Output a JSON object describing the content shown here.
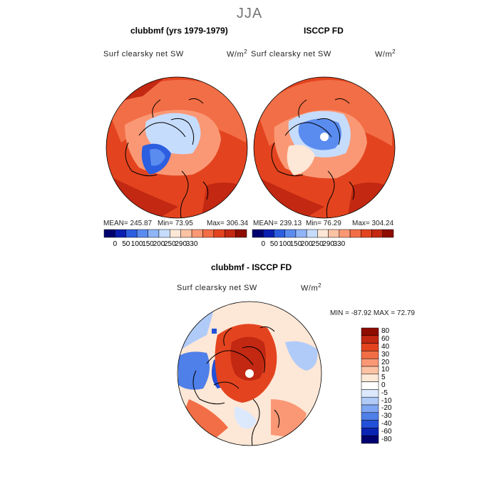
{
  "page": {
    "title": "JJA"
  },
  "panels": [
    {
      "title": "clubbmf (yrs 1979-1979)",
      "field": "Surf clearsky net SW",
      "units": "W/m",
      "units_sup": "2",
      "stats": {
        "mean": "MEAN= 245.87",
        "min": "Min=  73.95",
        "max": "Max= 306.34"
      },
      "colorbar_labels": [
        "0",
        "50",
        "100",
        "150",
        "200",
        "250",
        "290",
        "330"
      ]
    },
    {
      "title": "ISCCP FD",
      "field": "Surf clearsky net SW",
      "units": "W/m",
      "units_sup": "2",
      "stats": {
        "mean": "MEAN= 239.13",
        "min": "Min=  76.29",
        "max": "Max= 304.24"
      },
      "colorbar_labels": [
        "0",
        "50",
        "100",
        "150",
        "200",
        "250",
        "290",
        "330"
      ]
    }
  ],
  "diff": {
    "title": "clubbmf - ISCCP FD",
    "field": "Surf clearsky net SW",
    "units": "W/m",
    "units_sup": "2",
    "minmax": "MIN = -87.92 MAX =  72.79",
    "colorbar_labels": [
      "80",
      "60",
      "40",
      "30",
      "20",
      "10",
      "5",
      "0",
      "-5",
      "-10",
      "-20",
      "-30",
      "-40",
      "-60",
      "-80"
    ]
  },
  "colors": {
    "abs_scale": [
      "#00006e",
      "#0a1fb0",
      "#2c5ee0",
      "#5a8cf0",
      "#8fb4f8",
      "#c6dcfc",
      "#fde7d6",
      "#fcc2a4",
      "#fa9875",
      "#f26e46",
      "#e3441f",
      "#c22812",
      "#8e0c00"
    ],
    "diff_scale": [
      "#8e0c00",
      "#c22812",
      "#e3441f",
      "#f26e46",
      "#fa9875",
      "#fcc2a4",
      "#fde7d6",
      "#ffffff",
      "#dce8fc",
      "#b0cbf8",
      "#7fa6f2",
      "#4f7fe8",
      "#2350d8",
      "#0a24b4",
      "#00006e"
    ]
  }
}
